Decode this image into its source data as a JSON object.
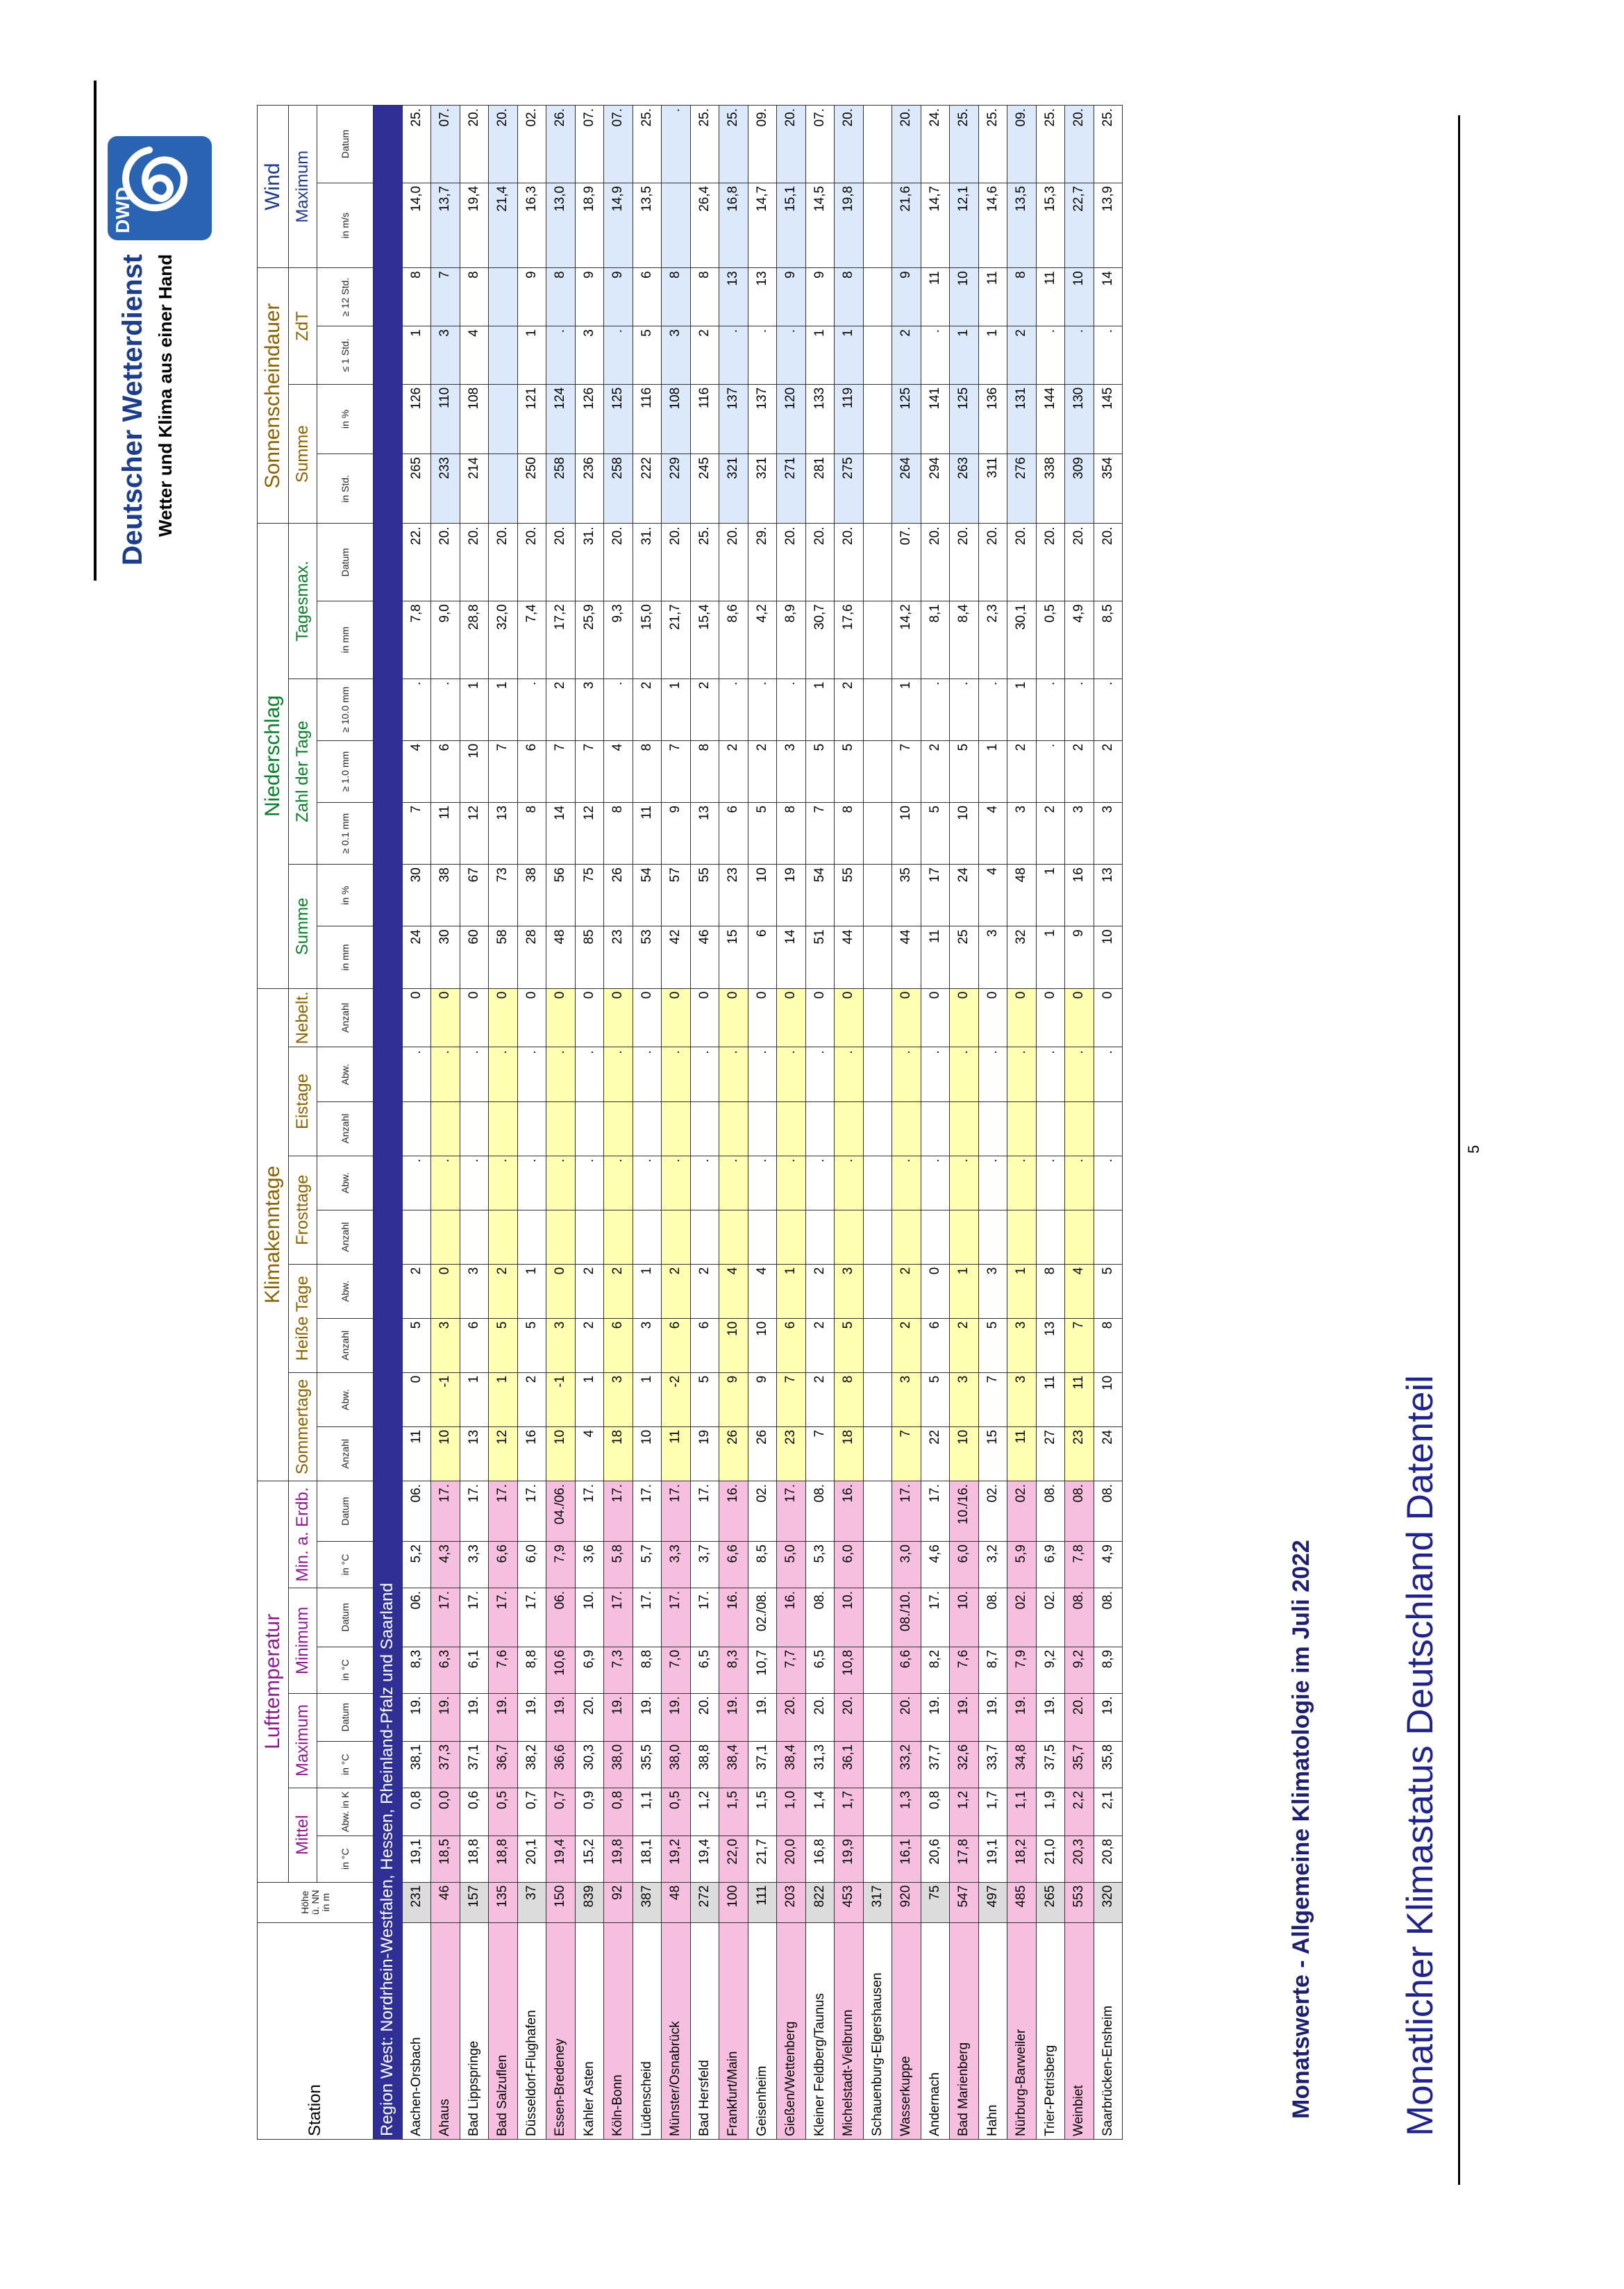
{
  "document": {
    "title": "Monatlicher Klimastatus Deutschland Datenteil",
    "subtitle": "Monatswerte - Allgemeine Klimatologie im Juli 2022",
    "brand_name": "Deutscher Wetterdienst",
    "brand_tagline": "Wetter und Klima aus einer Hand",
    "logo_text": "DWD",
    "page_number": "5"
  },
  "headers": {
    "station": "Station",
    "hoehe": "Höhe ü. NN in m",
    "group_lufttemperatur": "Lufttemperatur",
    "group_klimakenntage": "Klimakenntage",
    "group_niederschlag": "Niederschlag",
    "group_sonnenschein": "Sonnenscheindauer",
    "group_wind": "Wind",
    "mittel": "Mittel",
    "maximum": "Maximum",
    "minimum": "Minimum",
    "min_erdb": "Min. a. Erdb.",
    "sommertage": "Sommertage",
    "heisse_tage": "Heiße Tage",
    "frosttage": "Frosttage",
    "eistage": "Eistage",
    "nebel": "Nebelt.",
    "summe": "Summe",
    "zahl_tage": "Zahl der Tage",
    "tagesmax": "Tagesmax.",
    "sonne_summe": "Summe",
    "zdt": "ZdT",
    "wind_max": "Maximum",
    "units": {
      "in_c": "in °C",
      "abw_k": "Abw. in K",
      "datum": "Datum",
      "anzahl": "Anzahl",
      "abw": "Abw.",
      "in_mm": "in mm",
      "in_pct": "in %",
      "ge01": "≥ 0.1 mm",
      "ge10": "≥ 1.0 mm",
      "ge100": "≥ 10.0 mm",
      "in_std": "in Std.",
      "le1": "≤ 1 Std.",
      "ge12": "≥ 12 Std.",
      "in_ms": "in m/s"
    }
  },
  "region_label": "Region West: Nordrhein-Westfalen, Hessen, Rheinland-Pfalz und Saarland",
  "rows": [
    {
      "name": "Aachen-Orsbach",
      "pink": false,
      "v": [
        "231",
        "19,1",
        "0,8",
        "38,1",
        "19.",
        "8,3",
        "06.",
        "5,2",
        "06.",
        "11",
        "0",
        "5",
        "2",
        "",
        ".",
        "",
        ".",
        "0",
        "24",
        "30",
        "7",
        "4",
        ".",
        "7,8",
        "22.",
        "265",
        "126",
        "1",
        "8",
        "14,0",
        "25."
      ]
    },
    {
      "name": "Ahaus",
      "pink": true,
      "v": [
        "46",
        "18,5",
        "0,0",
        "37,3",
        "19.",
        "6,3",
        "17.",
        "4,3",
        "17.",
        "10",
        "-1",
        "3",
        "0",
        "",
        ".",
        "",
        ".",
        "0",
        "30",
        "38",
        "11",
        "6",
        ".",
        "9,0",
        "20.",
        "233",
        "110",
        "3",
        "7",
        "13,7",
        "07."
      ]
    },
    {
      "name": "Bad Lippspringe",
      "pink": false,
      "v": [
        "157",
        "18,8",
        "0,6",
        "37,1",
        "19.",
        "6,1",
        "17.",
        "3,3",
        "17.",
        "13",
        "1",
        "6",
        "3",
        "",
        ".",
        "",
        ".",
        "0",
        "60",
        "67",
        "12",
        "10",
        "1",
        "28,8",
        "20.",
        "214",
        "108",
        "4",
        "8",
        "19,4",
        "20."
      ]
    },
    {
      "name": "Bad Salzuflen",
      "pink": true,
      "v": [
        "135",
        "18,8",
        "0,5",
        "36,7",
        "19.",
        "7,6",
        "17.",
        "6,6",
        "17.",
        "12",
        "1",
        "5",
        "2",
        "",
        ".",
        "",
        ".",
        "0",
        "58",
        "73",
        "13",
        "7",
        "1",
        "32,0",
        "20.",
        "",
        "",
        "",
        "",
        "21,4",
        "20."
      ]
    },
    {
      "name": "Düsseldorf-Flughafen",
      "pink": false,
      "v": [
        "37",
        "20,1",
        "0,7",
        "38,2",
        "19.",
        "8,8",
        "17.",
        "6,0",
        "17.",
        "16",
        "2",
        "5",
        "1",
        "",
        ".",
        "",
        ".",
        "0",
        "28",
        "38",
        "8",
        "6",
        ".",
        "7,4",
        "20.",
        "250",
        "121",
        "1",
        "9",
        "16,3",
        "02."
      ]
    },
    {
      "name": "Essen-Bredeney",
      "pink": true,
      "v": [
        "150",
        "19,4",
        "0,7",
        "36,6",
        "19.",
        "10,6",
        "06.",
        "7,9",
        "04./06.",
        "10",
        "-1",
        "3",
        "0",
        "",
        ".",
        "",
        ".",
        "0",
        "48",
        "56",
        "14",
        "7",
        "2",
        "17,2",
        "20.",
        "258",
        "124",
        ".",
        "8",
        "13,0",
        "26."
      ]
    },
    {
      "name": "Kahler Asten",
      "pink": false,
      "v": [
        "839",
        "15,2",
        "0,9",
        "30,3",
        "20.",
        "6,9",
        "10.",
        "3,6",
        "17.",
        "4",
        "1",
        "2",
        "2",
        "",
        ".",
        "",
        ".",
        "0",
        "85",
        "75",
        "12",
        "7",
        "3",
        "25,9",
        "31.",
        "236",
        "126",
        "3",
        "9",
        "18,9",
        "07."
      ]
    },
    {
      "name": "Köln-Bonn",
      "pink": true,
      "v": [
        "92",
        "19,8",
        "0,8",
        "38,0",
        "19.",
        "7,3",
        "17.",
        "5,8",
        "17.",
        "18",
        "3",
        "6",
        "2",
        "",
        ".",
        "",
        ".",
        "0",
        "23",
        "26",
        "8",
        "4",
        ".",
        "9,3",
        "20.",
        "258",
        "125",
        ".",
        "9",
        "14,9",
        "07."
      ]
    },
    {
      "name": "Lüdenscheid",
      "pink": false,
      "v": [
        "387",
        "18,1",
        "1,1",
        "35,5",
        "19.",
        "8,8",
        "17.",
        "5,7",
        "17.",
        "10",
        "1",
        "3",
        "1",
        "",
        ".",
        "",
        ".",
        "0",
        "53",
        "54",
        "11",
        "8",
        "2",
        "15,0",
        "31.",
        "222",
        "116",
        "5",
        "6",
        "13,5",
        "25."
      ]
    },
    {
      "name": "Münster/Osnabrück",
      "pink": true,
      "v": [
        "48",
        "19,2",
        "0,5",
        "38,0",
        "19.",
        "7,0",
        "17.",
        "3,3",
        "17.",
        "11",
        "-2",
        "6",
        "2",
        "",
        ".",
        "",
        ".",
        "0",
        "42",
        "57",
        "9",
        "7",
        "1",
        "21,7",
        "20.",
        "229",
        "108",
        "3",
        "8",
        "",
        "."
      ]
    },
    {
      "name": "Bad Hersfeld",
      "pink": false,
      "v": [
        "272",
        "19,4",
        "1,2",
        "38,8",
        "20.",
        "6,5",
        "17.",
        "3,7",
        "17.",
        "19",
        "5",
        "6",
        "2",
        "",
        ".",
        "",
        ".",
        "0",
        "46",
        "55",
        "13",
        "8",
        "2",
        "15,4",
        "25.",
        "245",
        "116",
        "2",
        "8",
        "26,4",
        "25."
      ]
    },
    {
      "name": "Frankfurt/Main",
      "pink": true,
      "v": [
        "100",
        "22,0",
        "1,5",
        "38,4",
        "19.",
        "8,3",
        "16.",
        "6,6",
        "16.",
        "26",
        "9",
        "10",
        "4",
        "",
        ".",
        "",
        ".",
        "0",
        "15",
        "23",
        "6",
        "2",
        ".",
        "8,6",
        "20.",
        "321",
        "137",
        ".",
        "13",
        "16,8",
        "25."
      ]
    },
    {
      "name": "Geisenheim",
      "pink": false,
      "v": [
        "111",
        "21,7",
        "1,5",
        "37,1",
        "19.",
        "10,7",
        "02./08.",
        "8,5",
        "02.",
        "26",
        "9",
        "10",
        "4",
        "",
        ".",
        "",
        ".",
        "0",
        "6",
        "10",
        "5",
        "2",
        ".",
        "4,2",
        "29.",
        "321",
        "137",
        ".",
        "13",
        "14,7",
        "09."
      ]
    },
    {
      "name": "Gießen/Wettenberg",
      "pink": true,
      "v": [
        "203",
        "20,0",
        "1,0",
        "38,4",
        "20.",
        "7,7",
        "16.",
        "5,0",
        "17.",
        "23",
        "7",
        "6",
        "1",
        "",
        ".",
        "",
        ".",
        "0",
        "14",
        "19",
        "8",
        "3",
        ".",
        "8,9",
        "20.",
        "271",
        "120",
        ".",
        "9",
        "15,1",
        "20."
      ]
    },
    {
      "name": "Kleiner Feldberg/Taunus",
      "pink": false,
      "v": [
        "822",
        "16,8",
        "1,4",
        "31,3",
        "20.",
        "6,5",
        "08.",
        "5,3",
        "08.",
        "7",
        "2",
        "2",
        "2",
        "",
        ".",
        "",
        ".",
        "0",
        "51",
        "54",
        "7",
        "5",
        "1",
        "30,7",
        "20.",
        "281",
        "133",
        "1",
        "9",
        "14,5",
        "07."
      ]
    },
    {
      "name": "Michelstadt-Vielbrunn",
      "pink": true,
      "v": [
        "453",
        "19,9",
        "1,7",
        "36,1",
        "20.",
        "10,8",
        "10.",
        "6,0",
        "16.",
        "18",
        "8",
        "5",
        "3",
        "",
        ".",
        "",
        ".",
        "0",
        "44",
        "55",
        "8",
        "5",
        "2",
        "17,6",
        "20.",
        "275",
        "119",
        "1",
        "8",
        "19,8",
        "20."
      ]
    },
    {
      "name": "Schauenburg-Elgershausen",
      "pink": false,
      "v": [
        "317",
        "",
        "",
        "",
        "",
        "",
        "",
        "",
        "",
        "",
        "",
        "",
        "",
        "",
        "",
        "",
        "",
        "",
        "",
        "",
        "",
        "",
        "",
        "",
        "",
        "",
        "",
        "",
        "",
        "",
        ""
      ]
    },
    {
      "name": "Wasserkuppe",
      "pink": true,
      "v": [
        "920",
        "16,1",
        "1,3",
        "33,2",
        "20.",
        "6,6",
        "08./10.",
        "3,0",
        "17.",
        "7",
        "3",
        "2",
        "2",
        "",
        ".",
        "",
        ".",
        "0",
        "44",
        "35",
        "10",
        "7",
        "1",
        "14,2",
        "07.",
        "264",
        "125",
        "2",
        "9",
        "21,6",
        "20."
      ]
    },
    {
      "name": "Andernach",
      "pink": false,
      "v": [
        "75",
        "20,6",
        "0,8",
        "37,7",
        "19.",
        "8,2",
        "17.",
        "4,6",
        "17.",
        "22",
        "5",
        "6",
        "0",
        "",
        ".",
        "",
        ".",
        "0",
        "11",
        "17",
        "5",
        "2",
        ".",
        "8,1",
        "20.",
        "294",
        "141",
        ".",
        "11",
        "14,7",
        "24."
      ]
    },
    {
      "name": "Bad Marienberg",
      "pink": true,
      "v": [
        "547",
        "17,8",
        "1,2",
        "32,6",
        "19.",
        "7,6",
        "10.",
        "6,0",
        "10./16.",
        "10",
        "3",
        "2",
        "1",
        "",
        ".",
        "",
        ".",
        "0",
        "25",
        "24",
        "10",
        "5",
        ".",
        "8,4",
        "20.",
        "263",
        "125",
        "1",
        "10",
        "12,1",
        "25."
      ]
    },
    {
      "name": "Hahn",
      "pink": false,
      "v": [
        "497",
        "19,1",
        "1,7",
        "33,7",
        "19.",
        "8,7",
        "08.",
        "3,2",
        "02.",
        "15",
        "7",
        "5",
        "3",
        "",
        ".",
        "",
        ".",
        "0",
        "3",
        "4",
        "4",
        "1",
        ".",
        "2,3",
        "20.",
        "311",
        "136",
        "1",
        "11",
        "14,6",
        "25."
      ]
    },
    {
      "name": "Nürburg-Barweiler",
      "pink": true,
      "v": [
        "485",
        "18,2",
        "1,1",
        "34,8",
        "19.",
        "7,9",
        "02.",
        "5,9",
        "02.",
        "11",
        "3",
        "3",
        "1",
        "",
        ".",
        "",
        ".",
        "0",
        "32",
        "48",
        "3",
        "2",
        "1",
        "30,1",
        "20.",
        "276",
        "131",
        "2",
        "8",
        "13,5",
        "09."
      ]
    },
    {
      "name": "Trier-Petrisberg",
      "pink": false,
      "v": [
        "265",
        "21,0",
        "1,9",
        "37,5",
        "19.",
        "9,2",
        "02.",
        "6,9",
        "08.",
        "27",
        "11",
        "13",
        "8",
        "",
        ".",
        "",
        ".",
        "0",
        "1",
        "1",
        "2",
        ".",
        ".",
        "0,5",
        "20.",
        "338",
        "144",
        ".",
        "11",
        "15,3",
        "25."
      ]
    },
    {
      "name": "Weinbiet",
      "pink": true,
      "v": [
        "553",
        "20,3",
        "2,2",
        "35,7",
        "20.",
        "9,2",
        "08.",
        "7,8",
        "08.",
        "23",
        "11",
        "7",
        "4",
        "",
        ".",
        "",
        ".",
        "0",
        "9",
        "16",
        "3",
        "2",
        ".",
        "4,9",
        "20.",
        "309",
        "130",
        ".",
        "10",
        "22,7",
        "20."
      ]
    },
    {
      "name": "Saarbrücken-Ensheim",
      "pink": false,
      "v": [
        "320",
        "20,8",
        "2,1",
        "35,8",
        "19.",
        "8,9",
        "08.",
        "4,9",
        "08.",
        "24",
        "10",
        "8",
        "5",
        "",
        ".",
        "",
        ".",
        "0",
        "10",
        "13",
        "3",
        "2",
        ".",
        "8,5",
        "20.",
        "354",
        "145",
        ".",
        "14",
        "13,9",
        "25."
      ]
    }
  ],
  "colors": {
    "region_bg": "#2f2f96",
    "row_pink": "#f6bfe0",
    "row_yellow": "#feffb0",
    "row_blue": "#dce9fb",
    "title_blue": "#20238a",
    "temp_header": "#8e1a8f",
    "niederschlag_header": "#0a7d2b"
  }
}
